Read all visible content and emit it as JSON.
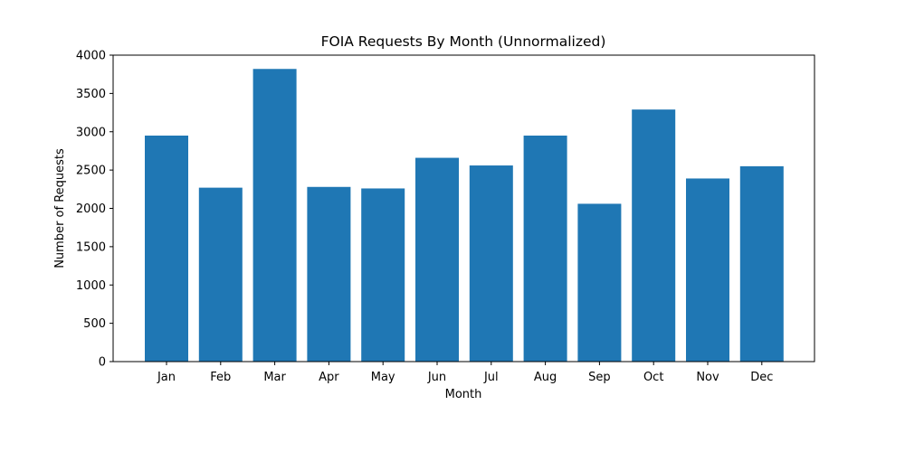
{
  "chart_data": {
    "type": "bar",
    "title": "FOIA Requests By Month (Unnormalized)",
    "xlabel": "Month",
    "ylabel": "Number of Requests",
    "categories": [
      "Jan",
      "Feb",
      "Mar",
      "Apr",
      "May",
      "Jun",
      "Jul",
      "Aug",
      "Sep",
      "Oct",
      "Nov",
      "Dec"
    ],
    "values": [
      2950,
      2270,
      3820,
      2280,
      2260,
      2660,
      2560,
      2950,
      2060,
      3290,
      2390,
      2550
    ],
    "ylim": [
      0,
      4000
    ],
    "yticks": [
      "0",
      "500",
      "1000",
      "1500",
      "2000",
      "2500",
      "3000",
      "3500",
      "4000"
    ],
    "grid": false,
    "bar_color": "#1f77b4"
  }
}
